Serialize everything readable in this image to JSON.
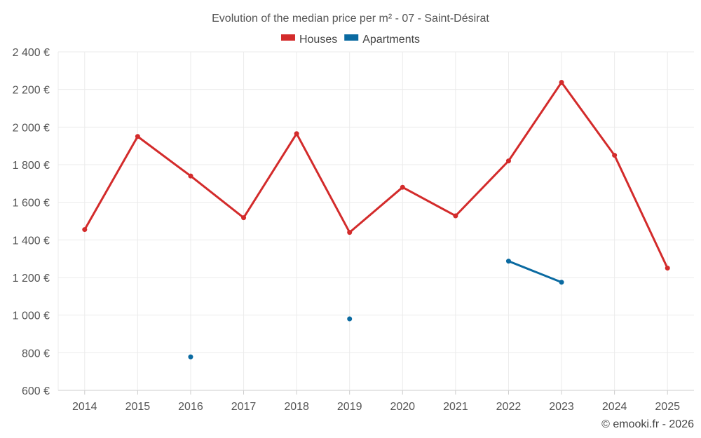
{
  "chart_data": {
    "type": "line",
    "title": "Evolution of the median price per m² - 07 - Saint-Désirat",
    "categories": [
      "2014",
      "2015",
      "2016",
      "2017",
      "2018",
      "2019",
      "2020",
      "2021",
      "2022",
      "2023",
      "2024",
      "2025"
    ],
    "ylim": [
      600,
      2400
    ],
    "yticks": [
      600,
      800,
      1000,
      1200,
      1400,
      1600,
      1800,
      2000,
      2200,
      2400
    ],
    "ytick_labels": [
      "600 €",
      "800 €",
      "1 000 €",
      "1 200 €",
      "1 400 €",
      "1 600 €",
      "1 800 €",
      "2 000 €",
      "2 200 €",
      "2 400 €"
    ],
    "grid": true,
    "legend_position": "top-center",
    "series": [
      {
        "name": "Houses",
        "color": "#d32b2b",
        "values": [
          1455,
          1950,
          1740,
          1518,
          1965,
          1440,
          1680,
          1528,
          1820,
          2238,
          1850,
          1250
        ]
      },
      {
        "name": "Apartments",
        "color": "#0a6aa1",
        "values": [
          null,
          null,
          778,
          null,
          null,
          980,
          null,
          null,
          1287,
          1175,
          null,
          null
        ]
      }
    ]
  },
  "footer": {
    "copyright": "© emooki.fr - 2026"
  }
}
